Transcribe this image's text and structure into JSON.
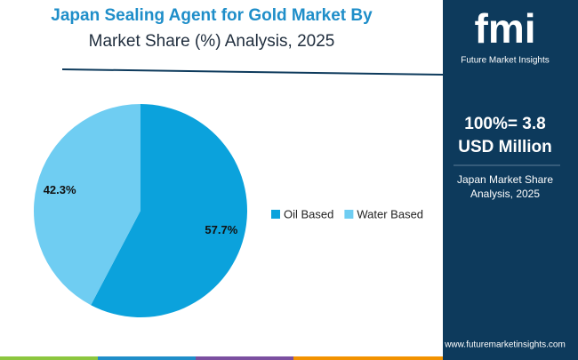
{
  "chart_data": {
    "type": "pie",
    "title": "Japan Sealing Agent for Gold Market By",
    "subtitle": "Market Share (%) Analysis, 2025",
    "categories": [
      "Oil Based",
      "Water Based"
    ],
    "values": [
      57.7,
      42.3
    ],
    "value_labels": [
      "57.7%",
      "42.3%"
    ],
    "colors": [
      "#0ba2dc",
      "#6fcdf2"
    ],
    "legend": "right"
  },
  "side_panel": {
    "logo": "fmi",
    "logo_caption": "Future Market Insights",
    "total_line1": "100%= 3.8",
    "total_line2": "USD Million",
    "caption_line1": "Japan Market Share",
    "caption_line2": "Analysis, 2025",
    "website": "www.futuremarketinsights.com"
  }
}
